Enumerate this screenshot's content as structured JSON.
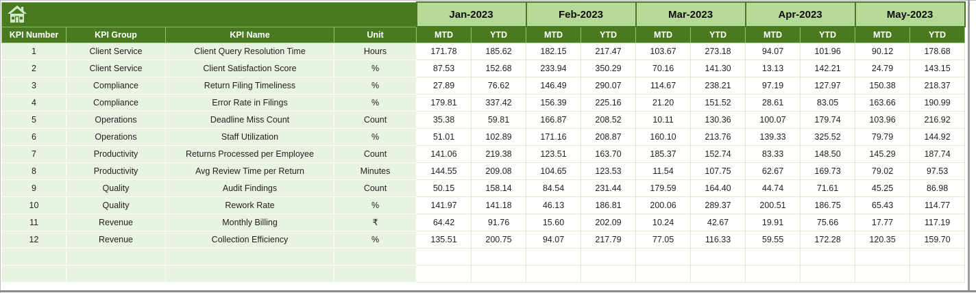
{
  "table": {
    "months": [
      "Jan-2023",
      "Feb-2023",
      "Mar-2023",
      "Apr-2023",
      "May-2023"
    ],
    "period_labels": [
      "MTD",
      "YTD"
    ],
    "left_headers": [
      "KPI Number",
      "KPI Group",
      "KPI Name",
      "Unit"
    ],
    "rows": [
      {
        "number": "1",
        "group": "Client Service",
        "name": "Client Query Resolution Time",
        "unit": "Hours",
        "values": [
          "171.78",
          "185.62",
          "182.15",
          "217.47",
          "103.67",
          "273.18",
          "94.07",
          "101.96",
          "90.12",
          "178.68"
        ]
      },
      {
        "number": "2",
        "group": "Client Service",
        "name": "Client Satisfaction Score",
        "unit": "%",
        "values": [
          "87.53",
          "152.68",
          "233.94",
          "350.29",
          "70.16",
          "141.30",
          "13.13",
          "142.21",
          "24.79",
          "143.15"
        ]
      },
      {
        "number": "3",
        "group": "Compliance",
        "name": "Return Filing Timeliness",
        "unit": "%",
        "values": [
          "27.89",
          "76.62",
          "146.49",
          "290.07",
          "114.67",
          "238.21",
          "97.19",
          "127.97",
          "150.38",
          "218.37"
        ]
      },
      {
        "number": "4",
        "group": "Compliance",
        "name": "Error Rate in Filings",
        "unit": "%",
        "values": [
          "179.81",
          "337.42",
          "156.39",
          "225.16",
          "21.20",
          "151.52",
          "28.61",
          "83.05",
          "163.66",
          "190.99"
        ]
      },
      {
        "number": "5",
        "group": "Operations",
        "name": "Deadline Miss Count",
        "unit": "Count",
        "values": [
          "35.38",
          "59.81",
          "166.87",
          "208.52",
          "10.11",
          "130.36",
          "100.07",
          "179.74",
          "103.96",
          "216.92"
        ]
      },
      {
        "number": "6",
        "group": "Operations",
        "name": "Staff Utilization",
        "unit": "%",
        "values": [
          "51.01",
          "102.89",
          "171.16",
          "208.87",
          "160.10",
          "213.76",
          "139.33",
          "325.52",
          "79.79",
          "144.92"
        ]
      },
      {
        "number": "7",
        "group": "Productivity",
        "name": "Returns Processed per Employee",
        "unit": "Count",
        "values": [
          "141.06",
          "219.38",
          "123.51",
          "163.70",
          "185.37",
          "152.74",
          "83.33",
          "148.50",
          "145.29",
          "187.74"
        ]
      },
      {
        "number": "8",
        "group": "Productivity",
        "name": "Avg Review Time per Return",
        "unit": "Minutes",
        "values": [
          "144.55",
          "209.08",
          "104.65",
          "123.53",
          "11.54",
          "107.75",
          "62.67",
          "169.73",
          "79.02",
          "97.53"
        ]
      },
      {
        "number": "9",
        "group": "Quality",
        "name": "Audit Findings",
        "unit": "Count",
        "values": [
          "50.15",
          "158.14",
          "84.54",
          "231.44",
          "179.59",
          "164.40",
          "44.74",
          "71.61",
          "45.25",
          "86.98"
        ]
      },
      {
        "number": "10",
        "group": "Quality",
        "name": "Rework Rate",
        "unit": "%",
        "values": [
          "141.97",
          "141.18",
          "46.13",
          "186.81",
          "200.06",
          "289.37",
          "200.51",
          "186.75",
          "65.43",
          "114.77"
        ]
      },
      {
        "number": "11",
        "group": "Revenue",
        "name": "Monthly Billing",
        "unit": "₹",
        "values": [
          "64.42",
          "91.76",
          "15.60",
          "202.09",
          "10.24",
          "42.67",
          "19.91",
          "75.66",
          "17.77",
          "117.19"
        ]
      },
      {
        "number": "12",
        "group": "Revenue",
        "name": "Collection Efficiency",
        "unit": "%",
        "values": [
          "135.51",
          "200.75",
          "94.07",
          "217.79",
          "77.05",
          "116.33",
          "59.55",
          "172.28",
          "120.35",
          "159.70"
        ]
      }
    ],
    "empty_row_count": 2
  },
  "colors": {
    "header_dark_green": "#4a7a20",
    "month_light_green": "#b5d996",
    "row_pale_green": "#e9f3e1",
    "numeric_grid_green": "#d9ecd0",
    "frame_grey": "#8c8c8c",
    "header_text": "#ffffff",
    "body_text": "#1f1f1f"
  }
}
